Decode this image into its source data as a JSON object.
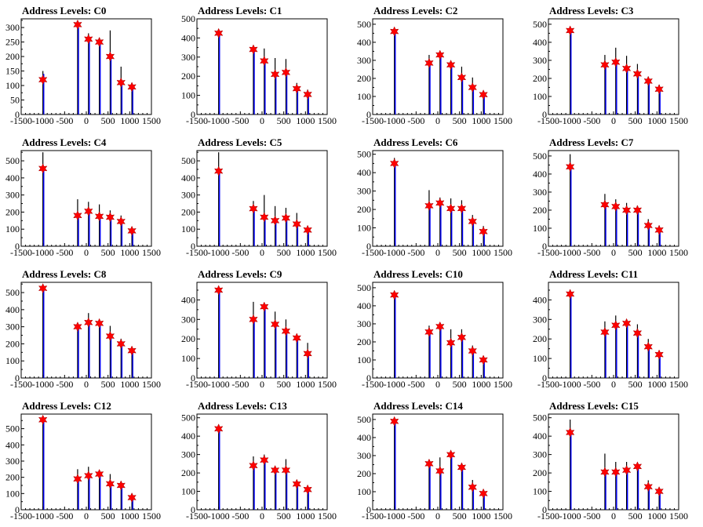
{
  "window": {
    "width": 896,
    "height": 672
  },
  "chart_common": {
    "xlim": [
      -1500,
      1500
    ],
    "xticks": [
      -1500,
      -1000,
      -500,
      0,
      500,
      1000,
      1500
    ],
    "colors": {
      "black_bars": "#000000",
      "blue_bars": "#0000ff",
      "markers": "#ff0000"
    }
  },
  "chart_data": [
    {
      "type": "bar",
      "title": "Address Levels: C0",
      "ylim": [
        0,
        330
      ],
      "yticks": [
        0,
        50,
        100,
        150,
        200,
        250,
        300
      ],
      "peaks_x": [
        -1000,
        -200,
        50,
        300,
        550,
        800,
        1050
      ],
      "black_values": [
        150,
        300,
        280,
        265,
        290,
        165,
        105
      ],
      "blue_values": [
        140,
        300,
        260,
        250,
        200,
        115,
        95
      ],
      "marker_values": [
        120,
        310,
        260,
        250,
        200,
        110,
        95
      ]
    },
    {
      "type": "bar",
      "title": "Address Levels: C1",
      "ylim": [
        0,
        500
      ],
      "yticks": [
        0,
        100,
        200,
        300,
        400,
        500
      ],
      "peaks_x": [
        -1000,
        -200,
        50,
        300,
        550,
        800,
        1050
      ],
      "black_values": [
        440,
        345,
        345,
        295,
        290,
        165,
        130
      ],
      "blue_values": [
        430,
        330,
        270,
        210,
        220,
        130,
        100
      ],
      "marker_values": [
        425,
        340,
        280,
        210,
        220,
        135,
        105
      ]
    },
    {
      "type": "bar",
      "title": "Address Levels: C2",
      "ylim": [
        0,
        530
      ],
      "yticks": [
        0,
        100,
        200,
        300,
        400,
        500
      ],
      "peaks_x": [
        -1000,
        -200,
        50,
        300,
        550,
        800,
        1050
      ],
      "black_values": [
        470,
        330,
        335,
        295,
        265,
        205,
        130
      ],
      "blue_values": [
        460,
        275,
        320,
        270,
        205,
        145,
        100
      ],
      "marker_values": [
        460,
        285,
        330,
        275,
        205,
        150,
        110
      ]
    },
    {
      "type": "bar",
      "title": "Address Levels: C3",
      "ylim": [
        0,
        530
      ],
      "yticks": [
        0,
        100,
        200,
        300,
        400,
        500
      ],
      "peaks_x": [
        -1000,
        -200,
        50,
        300,
        550,
        800,
        1050
      ],
      "black_values": [
        480,
        330,
        370,
        325,
        280,
        210,
        165
      ],
      "blue_values": [
        460,
        275,
        290,
        255,
        225,
        185,
        140
      ],
      "marker_values": [
        465,
        275,
        290,
        255,
        225,
        185,
        140
      ]
    },
    {
      "type": "bar",
      "title": "Address Levels: C4",
      "ylim": [
        0,
        560
      ],
      "yticks": [
        0,
        100,
        200,
        300,
        400,
        500
      ],
      "peaks_x": [
        -1000,
        -200,
        50,
        300,
        550,
        800,
        1050
      ],
      "black_values": [
        550,
        275,
        260,
        245,
        210,
        180,
        110
      ],
      "blue_values": [
        450,
        180,
        200,
        180,
        170,
        150,
        90
      ],
      "marker_values": [
        455,
        180,
        205,
        175,
        170,
        145,
        90
      ]
    },
    {
      "type": "bar",
      "title": "Address Levels: C5",
      "ylim": [
        0,
        560
      ],
      "yticks": [
        0,
        100,
        200,
        300,
        400,
        500
      ],
      "peaks_x": [
        -1000,
        -200,
        50,
        300,
        550,
        800,
        1050
      ],
      "black_values": [
        550,
        265,
        300,
        235,
        225,
        195,
        100
      ],
      "blue_values": [
        440,
        220,
        165,
        150,
        165,
        130,
        95
      ],
      "marker_values": [
        440,
        220,
        170,
        150,
        165,
        130,
        95
      ]
    },
    {
      "type": "bar",
      "title": "Address Levels: C6",
      "ylim": [
        0,
        520
      ],
      "yticks": [
        0,
        100,
        200,
        300,
        400,
        500
      ],
      "peaks_x": [
        -1000,
        -200,
        50,
        300,
        550,
        800,
        1050
      ],
      "black_values": [
        480,
        305,
        265,
        260,
        250,
        170,
        110
      ],
      "blue_values": [
        450,
        220,
        235,
        205,
        205,
        135,
        80
      ],
      "marker_values": [
        450,
        220,
        235,
        205,
        205,
        135,
        80
      ]
    },
    {
      "type": "bar",
      "title": "Address Levels: C7",
      "ylim": [
        0,
        530
      ],
      "yticks": [
        0,
        100,
        200,
        300,
        400,
        500
      ],
      "peaks_x": [
        -1000,
        -200,
        50,
        300,
        550,
        800,
        1050
      ],
      "black_values": [
        510,
        290,
        260,
        240,
        225,
        150,
        115
      ],
      "blue_values": [
        440,
        230,
        220,
        200,
        200,
        120,
        90
      ],
      "marker_values": [
        440,
        230,
        220,
        200,
        200,
        115,
        90
      ]
    },
    {
      "type": "bar",
      "title": "Address Levels: C8",
      "ylim": [
        0,
        560
      ],
      "yticks": [
        0,
        100,
        200,
        300,
        400,
        500
      ],
      "peaks_x": [
        -1000,
        -200,
        50,
        300,
        550,
        800,
        1050
      ],
      "black_values": [
        540,
        320,
        380,
        330,
        305,
        230,
        175
      ],
      "blue_values": [
        525,
        300,
        320,
        320,
        245,
        205,
        160
      ],
      "marker_values": [
        525,
        300,
        325,
        320,
        245,
        200,
        160
      ]
    },
    {
      "type": "bar",
      "title": "Address Levels: C9",
      "ylim": [
        0,
        490
      ],
      "yticks": [
        0,
        100,
        200,
        300,
        400
      ],
      "peaks_x": [
        -1000,
        -200,
        50,
        300,
        550,
        800,
        1050
      ],
      "black_values": [
        460,
        390,
        370,
        340,
        300,
        220,
        180
      ],
      "blue_values": [
        450,
        300,
        365,
        275,
        240,
        205,
        125
      ],
      "marker_values": [
        450,
        300,
        365,
        275,
        240,
        205,
        125
      ]
    },
    {
      "type": "bar",
      "title": "Address Levels: C10",
      "ylim": [
        0,
        530
      ],
      "yticks": [
        0,
        100,
        200,
        300,
        400,
        500
      ],
      "peaks_x": [
        -1000,
        -200,
        50,
        300,
        550,
        800,
        1050
      ],
      "black_values": [
        480,
        290,
        300,
        270,
        270,
        180,
        110
      ],
      "blue_values": [
        460,
        250,
        285,
        195,
        225,
        150,
        100
      ],
      "marker_values": [
        460,
        255,
        285,
        195,
        225,
        150,
        100
      ]
    },
    {
      "type": "bar",
      "title": "Address Levels: C11",
      "ylim": [
        0,
        490
      ],
      "yticks": [
        0,
        100,
        200,
        300,
        400
      ],
      "peaks_x": [
        -1000,
        -200,
        50,
        300,
        550,
        800,
        1050
      ],
      "black_values": [
        440,
        290,
        320,
        290,
        275,
        200,
        130
      ],
      "blue_values": [
        430,
        235,
        270,
        280,
        230,
        160,
        120
      ],
      "marker_values": [
        430,
        235,
        270,
        280,
        230,
        160,
        120
      ]
    },
    {
      "type": "bar",
      "title": "Address Levels: C12",
      "ylim": [
        0,
        590
      ],
      "yticks": [
        0,
        100,
        200,
        300,
        400,
        500
      ],
      "peaks_x": [
        -1000,
        -200,
        50,
        300,
        550,
        800,
        1050
      ],
      "black_values": [
        560,
        250,
        265,
        225,
        220,
        175,
        100
      ],
      "blue_values": [
        550,
        190,
        210,
        220,
        160,
        150,
        80
      ],
      "marker_values": [
        555,
        190,
        210,
        220,
        160,
        150,
        75
      ]
    },
    {
      "type": "bar",
      "title": "Address Levels: C13",
      "ylim": [
        0,
        520
      ],
      "yticks": [
        0,
        100,
        200,
        300,
        400,
        500
      ],
      "peaks_x": [
        -1000,
        -200,
        50,
        300,
        550,
        800,
        1050
      ],
      "black_values": [
        460,
        290,
        300,
        220,
        275,
        150,
        120
      ],
      "blue_values": [
        440,
        240,
        270,
        215,
        215,
        145,
        110
      ],
      "marker_values": [
        440,
        240,
        270,
        215,
        215,
        140,
        110
      ]
    },
    {
      "type": "bar",
      "title": "Address Levels: C14",
      "ylim": [
        0,
        530
      ],
      "yticks": [
        0,
        100,
        200,
        300,
        400,
        500
      ],
      "peaks_x": [
        -1000,
        -200,
        50,
        300,
        550,
        800,
        1050
      ],
      "black_values": [
        500,
        270,
        290,
        310,
        240,
        165,
        100
      ],
      "blue_values": [
        490,
        255,
        215,
        305,
        235,
        125,
        90
      ],
      "marker_values": [
        490,
        255,
        215,
        305,
        235,
        125,
        90
      ]
    },
    {
      "type": "bar",
      "title": "Address Levels: C15",
      "ylim": [
        0,
        520
      ],
      "yticks": [
        0,
        100,
        200,
        300,
        400,
        500
      ],
      "peaks_x": [
        -1000,
        -200,
        50,
        300,
        550,
        800,
        1050
      ],
      "black_values": [
        490,
        305,
        260,
        260,
        245,
        160,
        120
      ],
      "blue_values": [
        420,
        205,
        205,
        215,
        235,
        125,
        100
      ],
      "marker_values": [
        420,
        205,
        205,
        215,
        235,
        125,
        100
      ]
    }
  ]
}
